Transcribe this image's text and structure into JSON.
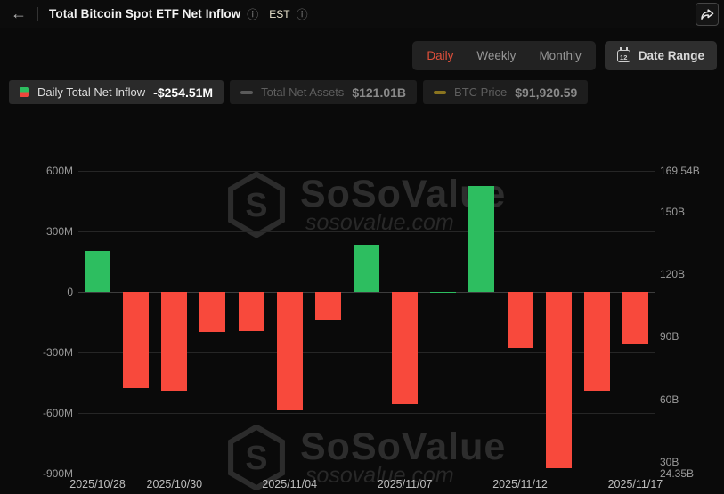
{
  "header": {
    "back_icon": "←",
    "title": "Total Bitcoin Spot ETF Net Inflow",
    "title_info_icon": "ⓘ",
    "timezone": "EST",
    "timezone_info_icon": "ⓘ"
  },
  "controls": {
    "period_tabs": [
      {
        "label": "Daily",
        "active": true
      },
      {
        "label": "Weekly",
        "active": false
      },
      {
        "label": "Monthly",
        "active": false
      }
    ],
    "date_range_label": "Date Range",
    "calendar_day": "12"
  },
  "legend": [
    {
      "label": "Daily Total Net Inflow",
      "value": "-$254.51M",
      "active": true,
      "icon": "inflow-candle-icon"
    },
    {
      "label": "Total Net Assets",
      "value": "$121.01B",
      "active": false,
      "icon": "dash-icon",
      "icon_color": "#5a5a5a"
    },
    {
      "label": "BTC Price",
      "value": "$91,920.59",
      "active": false,
      "icon": "dash-icon",
      "icon_color": "#8a741f"
    }
  ],
  "watermark": {
    "brand": "SoSoValue",
    "domain": "sosovalue.com",
    "logo_letter": "S"
  },
  "chart_data": {
    "type": "bar",
    "title": "Total Bitcoin Spot ETF Net Inflow",
    "x": [
      "2025/10/28",
      "2025/10/29",
      "2025/10/30",
      "2025/10/31",
      "2025/11/03",
      "2025/11/04",
      "2025/11/05",
      "2025/11/06",
      "2025/11/07",
      "2025/11/10",
      "2025/11/11",
      "2025/11/12",
      "2025/11/13",
      "2025/11/14",
      "2025/11/17"
    ],
    "values": [
      202,
      -476,
      -488,
      -198,
      -194,
      -587,
      -141,
      234,
      -556,
      1,
      525,
      -278,
      -872,
      -490,
      -254.51
    ],
    "units": "M USD",
    "x_tick_indices": [
      0,
      2,
      5,
      8,
      11,
      14
    ],
    "left_axis": {
      "ticks": [
        "600M",
        "300M",
        "0",
        "-300M",
        "-600M",
        "-900M"
      ],
      "values": [
        600,
        300,
        0,
        -300,
        -600,
        -900
      ],
      "range": [
        -900,
        600
      ]
    },
    "right_axis": {
      "ticks": [
        "169.54B",
        "150B",
        "120B",
        "90B",
        "60B",
        "30B",
        "24.35B"
      ],
      "values": [
        169.54,
        150,
        120,
        90,
        60,
        30,
        24.35
      ],
      "range": [
        24.35,
        169.54
      ]
    },
    "colors": {
      "positive": "#2dbe60",
      "negative": "#f8493c"
    },
    "grid": true,
    "legend_position": "top-left"
  }
}
